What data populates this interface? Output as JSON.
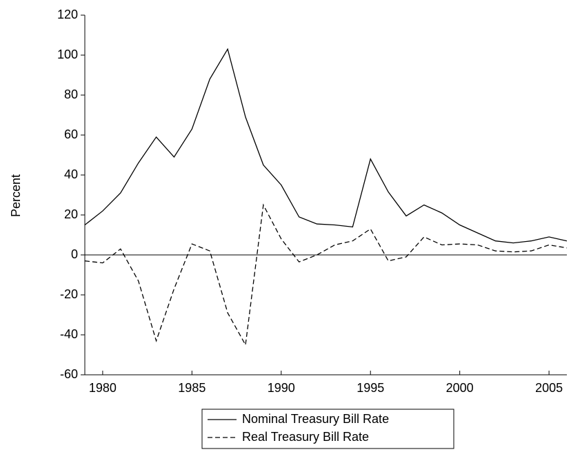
{
  "chart_data": {
    "type": "line",
    "y_label": "Percent",
    "x": [
      1979,
      1980,
      1981,
      1982,
      1983,
      1984,
      1985,
      1986,
      1987,
      1988,
      1989,
      1990,
      1991,
      1992,
      1993,
      1994,
      1995,
      1996,
      1997,
      1998,
      1999,
      2000,
      2001,
      2002,
      2003,
      2004,
      2005,
      2006
    ],
    "series": [
      {
        "name": "Nominal Treasury Bill Rate",
        "color": "#000000",
        "dash": "solid",
        "values": [
          15,
          22,
          31,
          46,
          59,
          49,
          63,
          88,
          103,
          69,
          45,
          35,
          19,
          15.5,
          15,
          14,
          48,
          31.5,
          19.5,
          25,
          21,
          15,
          11,
          7,
          6,
          7,
          9,
          7
        ]
      },
      {
        "name": "Real Treasury Bill Rate",
        "color": "#000000",
        "dash": "dashed",
        "values": [
          -3,
          -4,
          3,
          -13,
          -43,
          -17,
          5.5,
          2,
          -29,
          -45,
          25,
          8,
          -3.5,
          0,
          5,
          7,
          13,
          -3,
          -1,
          9,
          5,
          5.5,
          5,
          2,
          1.5,
          2,
          5,
          3.5
        ]
      }
    ],
    "xlim": [
      1979,
      2006
    ],
    "xticks": [
      1980,
      1985,
      1990,
      1995,
      2000,
      2005
    ],
    "ylim": [
      -60,
      120
    ],
    "yticks": [
      -60,
      -40,
      -20,
      0,
      20,
      40,
      60,
      80,
      100,
      120
    ],
    "zero_line": true,
    "legend_position": "bottom"
  }
}
